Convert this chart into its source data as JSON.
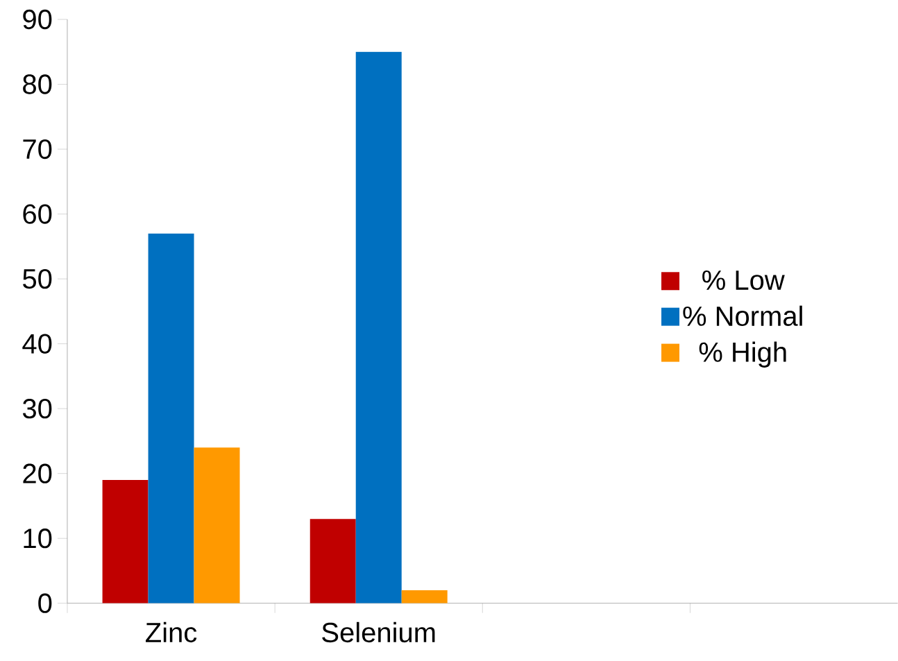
{
  "chart_data": {
    "type": "bar",
    "categories": [
      "Zinc",
      "Selenium",
      null,
      null
    ],
    "series": [
      {
        "name": "% Low",
        "color": "#c00000",
        "values": [
          19,
          13,
          null,
          null
        ]
      },
      {
        "name": "% Normal",
        "color": "#0070c0",
        "values": [
          57,
          85,
          null,
          null
        ]
      },
      {
        "name": "% High",
        "color": "#ff9900",
        "values": [
          24,
          2,
          null,
          null
        ]
      }
    ],
    "ylim": [
      0,
      90
    ],
    "yticks": [
      0,
      10,
      20,
      30,
      40,
      50,
      60,
      70,
      80,
      90
    ],
    "legend": "right"
  }
}
